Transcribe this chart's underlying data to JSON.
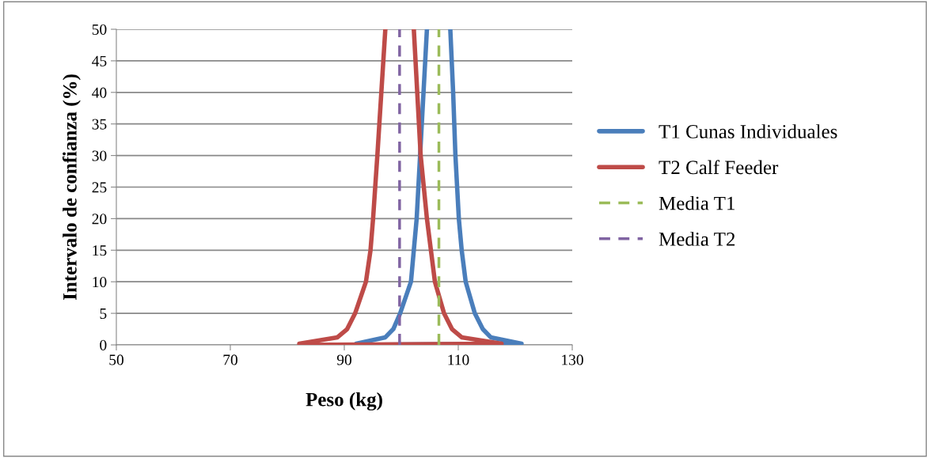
{
  "chart_data": {
    "type": "line",
    "xlabel": "Peso (kg)",
    "ylabel": "Intervalo de confianza (%)",
    "xlim": [
      50,
      130
    ],
    "xticks": [
      50,
      70,
      90,
      110,
      130
    ],
    "ylim": [
      0,
      50
    ],
    "yticks": [
      0,
      5,
      10,
      15,
      20,
      25,
      30,
      35,
      40,
      45,
      50
    ],
    "grid": "y",
    "legend": "right",
    "marker": "none",
    "series": [
      {
        "name": "T1 Cunas Individuales",
        "color": "#4a7ebb",
        "line_style": "solid",
        "x": [
          92.1,
          97.2,
          98.6,
          99.8,
          101.7,
          102.2,
          102.7,
          103.3,
          103.9,
          104.5,
          null,
          108.6,
          109.1,
          109.5,
          110.1,
          110.6,
          111.3,
          112.9,
          114.3,
          115.7,
          121.1,
          92.1
        ],
        "values": [
          0.2,
          1.2,
          2.5,
          5,
          10,
          15,
          20,
          30,
          40,
          50,
          null,
          50,
          40,
          30,
          20,
          15,
          10,
          5,
          2.5,
          1.2,
          0.2,
          0
        ]
      },
      {
        "name": "T2 Calf Feeder",
        "color": "#be4b48",
        "line_style": "solid",
        "x": [
          82.1,
          88.8,
          90.5,
          91.9,
          93.8,
          94.6,
          95.05,
          95.8,
          96.5,
          97.2,
          null,
          102.2,
          102.8,
          103.4,
          104.5,
          105.2,
          105.9,
          107.5,
          108.9,
          110.6,
          117.6,
          82.1
        ],
        "values": [
          0.2,
          1.2,
          2.5,
          5,
          10,
          15,
          20,
          30,
          40,
          50,
          null,
          50,
          40,
          30,
          20,
          15,
          10,
          5,
          2.5,
          1.2,
          0.2,
          0
        ]
      },
      {
        "name": "Media T1",
        "color": "#9bbb59",
        "line_style": "dashed",
        "x": [
          106.6,
          106.6
        ],
        "values": [
          0,
          50
        ]
      },
      {
        "name": "Media T2",
        "color": "#8064a2",
        "line_style": "dashed",
        "x": [
          99.7,
          99.7
        ],
        "values": [
          0,
          50
        ]
      }
    ]
  }
}
